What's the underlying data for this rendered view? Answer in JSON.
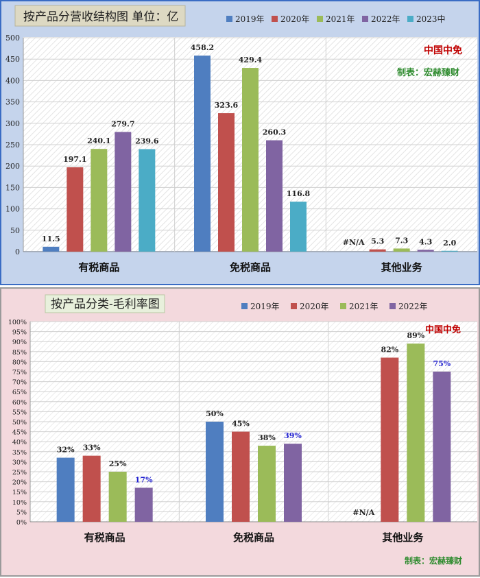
{
  "chart_data": [
    {
      "type": "bar",
      "title": "按产品分营收结构图 单位：亿",
      "annotation": "中国中免",
      "credit": "制表：宏赫臻财",
      "categories": [
        "有税商品",
        "免税商品",
        "其他业务"
      ],
      "ylim": [
        0,
        500
      ],
      "yticks": [
        0,
        50,
        100,
        150,
        200,
        250,
        300,
        350,
        400,
        450,
        500
      ],
      "legend_position": "top",
      "series": [
        {
          "name": "2019年",
          "color": "#4f7ec0",
          "values": [
            11.5,
            458.2,
            null
          ],
          "labels": [
            "11.5",
            "458.2",
            "#N/A"
          ]
        },
        {
          "name": "2020年",
          "color": "#c0504d",
          "values": [
            197.1,
            323.6,
            5.3
          ],
          "labels": [
            "197.1",
            "323.6",
            "5.3"
          ]
        },
        {
          "name": "2021年",
          "color": "#9bbb59",
          "values": [
            240.1,
            429.4,
            7.3
          ],
          "labels": [
            "240.1",
            "429.4",
            "7.3"
          ]
        },
        {
          "name": "2022年",
          "color": "#8064a2",
          "values": [
            279.7,
            260.3,
            4.3
          ],
          "labels": [
            "279.7",
            "260.3",
            "4.3"
          ]
        },
        {
          "name": "2023中",
          "color": "#4bacc6",
          "values": [
            239.6,
            116.8,
            2.0
          ],
          "labels": [
            "239.6",
            "116.8",
            "2.0"
          ]
        }
      ]
    },
    {
      "type": "bar",
      "title": "按产品分类-毛利率图",
      "annotation": "中国中免",
      "credit": "制表：宏赫臻财",
      "categories": [
        "有税商品",
        "免税商品",
        "其他业务"
      ],
      "ylim": [
        0,
        100
      ],
      "yticks": [
        "0%",
        "5%",
        "10%",
        "15%",
        "20%",
        "25%",
        "30%",
        "35%",
        "40%",
        "45%",
        "50%",
        "55%",
        "60%",
        "65%",
        "70%",
        "75%",
        "80%",
        "85%",
        "90%",
        "95%",
        "100%"
      ],
      "legend_position": "top",
      "series": [
        {
          "name": "2019年",
          "color": "#4f7ec0",
          "values": [
            32,
            50,
            null
          ],
          "labels": [
            "32%",
            "50%",
            "#N/A"
          ]
        },
        {
          "name": "2020年",
          "color": "#c0504d",
          "values": [
            33,
            45,
            82
          ],
          "labels": [
            "33%",
            "45%",
            "82%"
          ]
        },
        {
          "name": "2021年",
          "color": "#9bbb59",
          "values": [
            25,
            38,
            89
          ],
          "labels": [
            "25%",
            "38%",
            "89%"
          ]
        },
        {
          "name": "2022年",
          "color": "#8064a2",
          "values": [
            17,
            39,
            75
          ],
          "labels": [
            "17%",
            "39%",
            "75%"
          ],
          "label_color": "#1f1fd0"
        }
      ]
    }
  ]
}
